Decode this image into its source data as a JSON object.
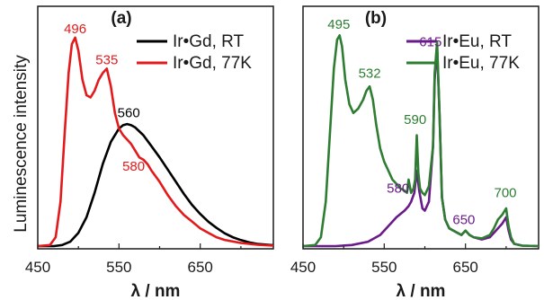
{
  "chart_data": [
    {
      "type": "line",
      "panel_label": "(a)",
      "ylabel": "Luminescence intensity",
      "xlabel": "λ / nm",
      "xlim": [
        450,
        740
      ],
      "xticks": [
        450,
        550,
        650
      ],
      "ylim": [
        0,
        1.0
      ],
      "legend_position": "top-right",
      "series": [
        {
          "name": "Ir•Gd, RT",
          "color": "#000000",
          "x": [
            450,
            470,
            480,
            490,
            500,
            510,
            520,
            530,
            540,
            550,
            555,
            560,
            565,
            570,
            580,
            590,
            600,
            610,
            620,
            630,
            640,
            650,
            660,
            670,
            680,
            690,
            700,
            710,
            720,
            740
          ],
          "y": [
            0.0,
            0.0,
            0.005,
            0.02,
            0.06,
            0.13,
            0.24,
            0.37,
            0.47,
            0.53,
            0.545,
            0.55,
            0.545,
            0.535,
            0.5,
            0.45,
            0.4,
            0.345,
            0.29,
            0.235,
            0.185,
            0.145,
            0.11,
            0.082,
            0.058,
            0.04,
            0.027,
            0.017,
            0.01,
            0.004
          ]
        },
        {
          "name": "Ir•Gd, 77K",
          "color": "#e31a1c",
          "x": [
            450,
            465,
            472,
            478,
            483,
            488,
            492,
            496,
            500,
            505,
            510,
            515,
            520,
            525,
            530,
            535,
            540,
            545,
            550,
            555,
            560,
            565,
            570,
            575,
            580,
            585,
            590,
            600,
            610,
            620,
            630,
            640,
            650,
            660,
            670,
            680,
            700,
            720,
            740
          ],
          "y": [
            0.0,
            0.005,
            0.04,
            0.2,
            0.5,
            0.78,
            0.91,
            0.94,
            0.88,
            0.75,
            0.68,
            0.67,
            0.7,
            0.75,
            0.78,
            0.8,
            0.72,
            0.6,
            0.53,
            0.5,
            0.48,
            0.46,
            0.43,
            0.4,
            0.39,
            0.37,
            0.34,
            0.29,
            0.23,
            0.18,
            0.14,
            0.11,
            0.08,
            0.06,
            0.04,
            0.028,
            0.014,
            0.006,
            0.002
          ]
        }
      ],
      "annotations": [
        {
          "text": "496",
          "x": 496,
          "y": 0.96,
          "color": "#e31a1c"
        },
        {
          "text": "535",
          "x": 535,
          "y": 0.82,
          "color": "#e31a1c"
        },
        {
          "text": "560",
          "x": 562,
          "y": 0.58,
          "color": "#000000"
        },
        {
          "text": "580",
          "x": 568,
          "y": 0.34,
          "color": "#e31a1c"
        }
      ]
    },
    {
      "type": "line",
      "panel_label": "(b)",
      "xlabel": "λ / nm",
      "xlim": [
        450,
        740
      ],
      "xticks": [
        450,
        550,
        650
      ],
      "ylim": [
        0,
        1.0
      ],
      "legend_position": "top-right",
      "series": [
        {
          "name": "Ir•Eu, RT",
          "color": "#6a1b8a",
          "x": [
            450,
            470,
            490,
            510,
            530,
            545,
            555,
            565,
            575,
            580,
            583,
            587,
            590,
            593,
            597,
            600,
            605,
            610,
            612,
            615,
            618,
            621,
            625,
            630,
            640,
            645,
            650,
            655,
            660,
            670,
            680,
            685,
            690,
            695,
            700,
            703,
            706,
            710,
            720,
            740
          ],
          "y": [
            0.0,
            0.0,
            0.0,
            0.005,
            0.02,
            0.05,
            0.09,
            0.13,
            0.16,
            0.18,
            0.2,
            0.24,
            0.34,
            0.25,
            0.17,
            0.16,
            0.2,
            0.45,
            0.75,
            0.9,
            0.6,
            0.22,
            0.12,
            0.08,
            0.06,
            0.05,
            0.07,
            0.05,
            0.04,
            0.03,
            0.04,
            0.06,
            0.08,
            0.1,
            0.13,
            0.07,
            0.03,
            0.01,
            0.002,
            0.0
          ]
        },
        {
          "name": "Ir•Eu, 77K",
          "color": "#2e7d32",
          "x": [
            450,
            465,
            472,
            478,
            483,
            488,
            492,
            495,
            498,
            502,
            507,
            512,
            518,
            524,
            528,
            532,
            536,
            540,
            545,
            550,
            555,
            560,
            565,
            570,
            575,
            578,
            580,
            583,
            586,
            588,
            590,
            592,
            594,
            597,
            600,
            605,
            610,
            612,
            615,
            618,
            621,
            625,
            630,
            640,
            645,
            650,
            655,
            660,
            670,
            680,
            685,
            690,
            695,
            700,
            703,
            706,
            710,
            720,
            740
          ],
          "y": [
            0.0,
            0.005,
            0.04,
            0.2,
            0.5,
            0.8,
            0.93,
            0.95,
            0.9,
            0.75,
            0.64,
            0.6,
            0.62,
            0.66,
            0.7,
            0.72,
            0.66,
            0.55,
            0.44,
            0.38,
            0.34,
            0.3,
            0.28,
            0.26,
            0.25,
            0.24,
            0.3,
            0.24,
            0.26,
            0.3,
            0.5,
            0.33,
            0.26,
            0.24,
            0.23,
            0.27,
            0.45,
            0.78,
            0.92,
            0.6,
            0.22,
            0.12,
            0.08,
            0.06,
            0.05,
            0.07,
            0.05,
            0.04,
            0.035,
            0.05,
            0.08,
            0.12,
            0.14,
            0.17,
            0.09,
            0.04,
            0.01,
            0.002,
            0.0
          ]
        }
      ],
      "annotations": [
        {
          "text": "495",
          "x": 494,
          "y": 0.98,
          "color": "#2e7d32"
        },
        {
          "text": "532",
          "x": 532,
          "y": 0.76,
          "color": "#2e7d32"
        },
        {
          "text": "590",
          "x": 588,
          "y": 0.55,
          "color": "#2e7d32"
        },
        {
          "text": "615",
          "x": 607,
          "y": 0.9,
          "color": "#6a1b8a"
        },
        {
          "text": "580",
          "x": 567,
          "y": 0.24,
          "color": "#6a1b8a"
        },
        {
          "text": "650",
          "x": 648,
          "y": 0.1,
          "color": "#6a1b8a"
        },
        {
          "text": "700",
          "x": 699,
          "y": 0.22,
          "color": "#2e7d32"
        }
      ]
    }
  ]
}
